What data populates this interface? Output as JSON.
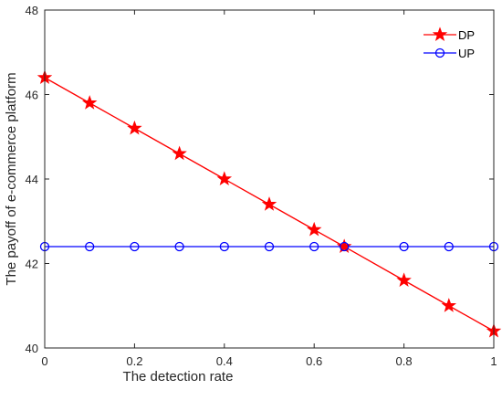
{
  "chart_data": {
    "type": "line",
    "title": "",
    "xlabel": "The detection rate",
    "ylabel": "The payoff of e-commerce platform",
    "xlim": [
      0,
      1
    ],
    "ylim": [
      40,
      48
    ],
    "xticks": [
      0,
      0.2,
      0.4,
      0.6,
      0.8,
      1
    ],
    "xtick_labels": [
      "0",
      "0.2",
      "0.4",
      "0.6",
      "0.8",
      "1"
    ],
    "yticks": [
      40,
      42,
      44,
      46,
      48
    ],
    "ytick_labels": [
      "40",
      "42",
      "44",
      "46",
      "48"
    ],
    "grid": false,
    "legend_position": "top-right",
    "series": [
      {
        "name": "DP",
        "color": "#ff0000",
        "marker": "star",
        "x": [
          0,
          0.1,
          0.2,
          0.3,
          0.4,
          0.5,
          0.6,
          0.667,
          0.8,
          0.9,
          1
        ],
        "y": [
          46.4,
          45.8,
          45.2,
          44.6,
          44.0,
          43.4,
          42.8,
          42.4,
          41.6,
          41.0,
          40.4
        ]
      },
      {
        "name": "UP",
        "color": "#0000ff",
        "marker": "circle",
        "x": [
          0,
          0.1,
          0.2,
          0.3,
          0.4,
          0.5,
          0.6,
          0.667,
          0.8,
          0.9,
          1
        ],
        "y": [
          42.4,
          42.4,
          42.4,
          42.4,
          42.4,
          42.4,
          42.4,
          42.4,
          42.4,
          42.4,
          42.4
        ]
      }
    ]
  }
}
